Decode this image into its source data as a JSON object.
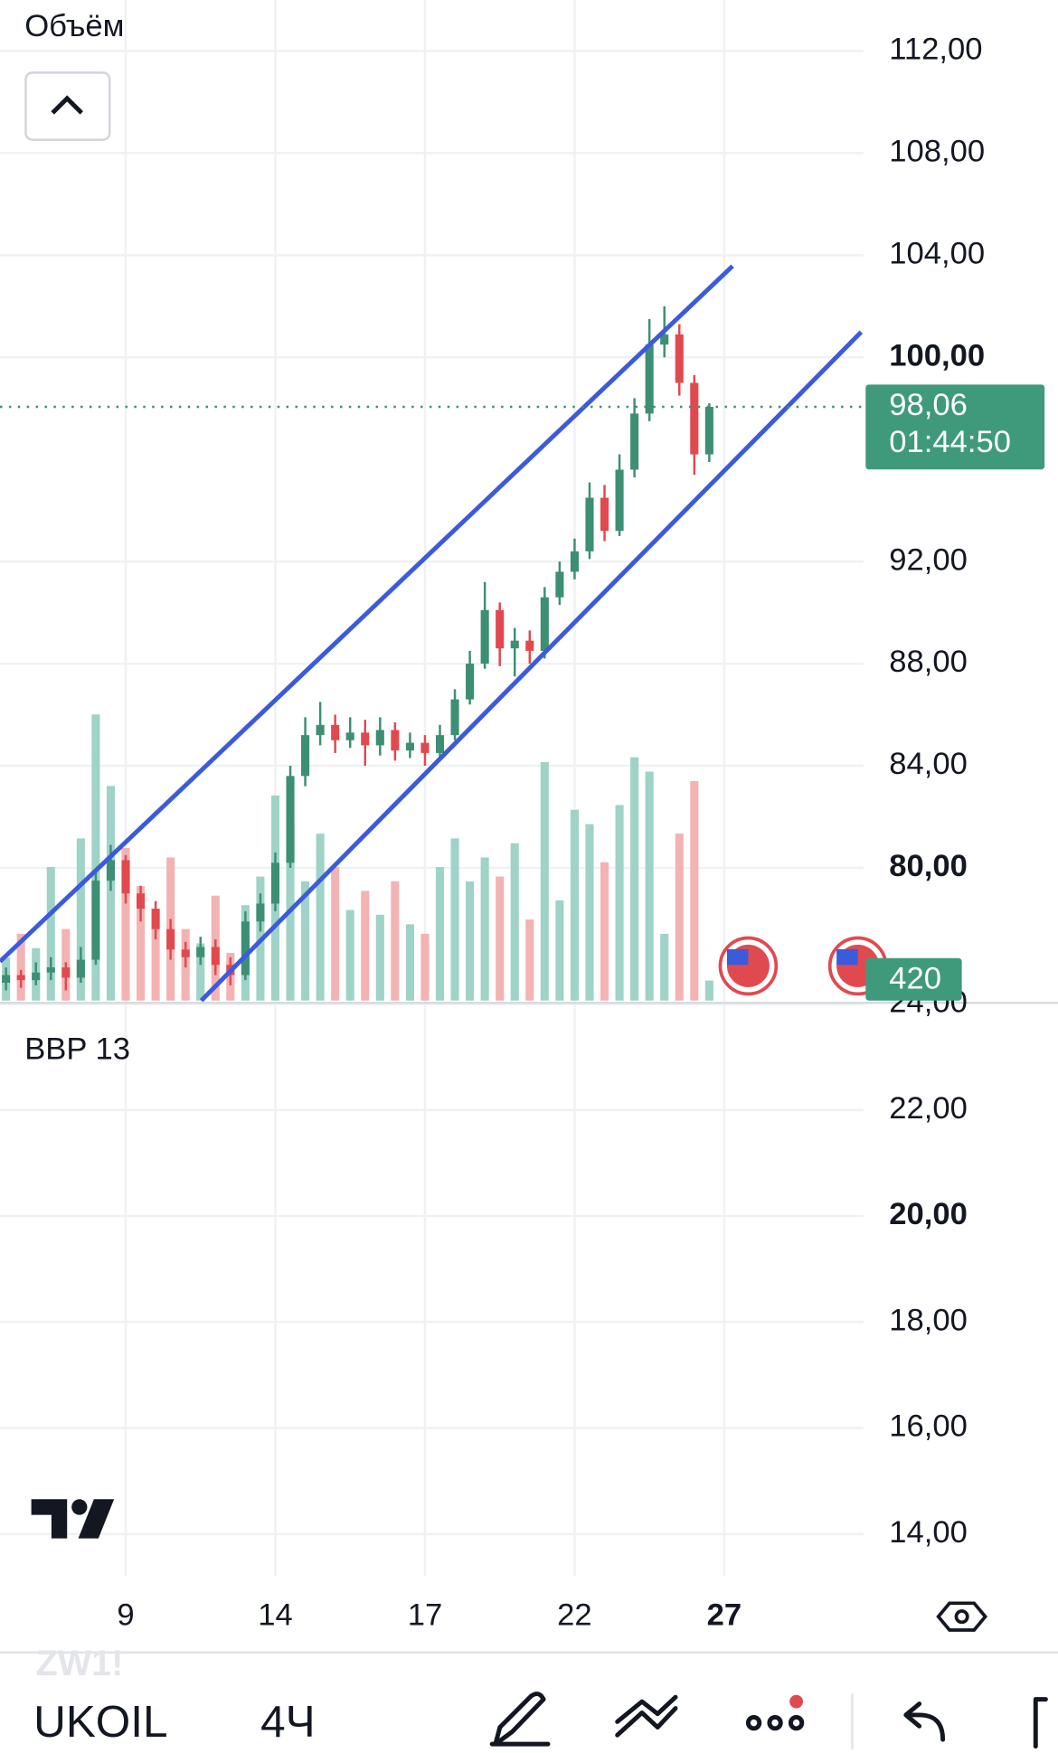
{
  "header": {
    "volume_label": "Объём"
  },
  "chart_data": {
    "type": "candlestick",
    "x": [
      0,
      1,
      2,
      3,
      4,
      5,
      6,
      7,
      8,
      9,
      10,
      11,
      12,
      13,
      14,
      15,
      16,
      17,
      18,
      19,
      20,
      21,
      22,
      23,
      24,
      25,
      26,
      27,
      28,
      29,
      30,
      31,
      32,
      33,
      34,
      35,
      36,
      37,
      38,
      39,
      40,
      41,
      42,
      43,
      44,
      45,
      46,
      47
    ],
    "open": [
      75.5,
      75.8,
      75.6,
      75.9,
      76.1,
      75.7,
      76.4,
      79.5,
      80.3,
      79.0,
      78.4,
      77.6,
      76.8,
      76.5,
      76.9,
      76.2,
      75.8,
      77.9,
      78.6,
      80.2,
      83.6,
      85.2,
      85.6,
      85.0,
      85.3,
      84.8,
      85.4,
      84.6,
      84.9,
      84.5,
      85.2,
      86.6,
      88.0,
      90.1,
      88.6,
      88.9,
      88.5,
      90.6,
      91.6,
      92.4,
      94.5,
      93.2,
      95.6,
      97.8,
      100.5,
      100.9,
      99.0,
      96.2
    ],
    "high": [
      76.1,
      76.0,
      76.3,
      76.5,
      76.3,
      76.9,
      79.9,
      80.9,
      80.5,
      79.3,
      78.7,
      78.0,
      77.1,
      77.3,
      77.2,
      76.5,
      78.3,
      79.0,
      80.6,
      84.0,
      85.9,
      86.5,
      86.0,
      85.9,
      85.8,
      85.9,
      85.7,
      85.3,
      85.2,
      85.6,
      87.0,
      88.5,
      91.2,
      90.4,
      89.4,
      89.3,
      91.0,
      92.0,
      92.9,
      95.1,
      95.0,
      96.2,
      98.4,
      101.5,
      102.0,
      101.3,
      99.3,
      98.2
    ],
    "low": [
      75.2,
      75.3,
      75.4,
      75.6,
      75.2,
      75.5,
      76.2,
      79.1,
      78.6,
      77.9,
      77.2,
      76.4,
      76.1,
      76.2,
      75.8,
      75.4,
      75.6,
      77.5,
      78.3,
      80.0,
      83.2,
      84.8,
      84.5,
      84.7,
      84.0,
      84.4,
      84.2,
      84.3,
      84.0,
      84.2,
      85.0,
      86.4,
      87.8,
      87.9,
      87.5,
      88.0,
      88.2,
      90.3,
      91.3,
      92.1,
      92.8,
      93.0,
      95.3,
      97.5,
      100.0,
      98.5,
      95.4,
      95.9
    ],
    "close": [
      75.8,
      75.6,
      75.9,
      76.1,
      75.7,
      76.4,
      79.5,
      80.3,
      79.0,
      78.4,
      77.6,
      76.8,
      76.5,
      76.9,
      76.2,
      75.8,
      77.9,
      78.6,
      80.2,
      83.6,
      85.2,
      85.6,
      85.0,
      85.3,
      84.8,
      85.4,
      84.6,
      84.9,
      84.5,
      85.2,
      86.6,
      88.0,
      90.1,
      88.6,
      88.9,
      88.5,
      90.6,
      91.6,
      92.4,
      94.5,
      93.2,
      95.6,
      97.8,
      100.5,
      100.9,
      99.0,
      96.2,
      98.06
    ],
    "volume": [
      900,
      1400,
      1100,
      2800,
      1500,
      3400,
      6000,
      4500,
      3200,
      2400,
      1900,
      3000,
      1500,
      1200,
      2200,
      1000,
      2000,
      2600,
      4300,
      3800,
      2500,
      3500,
      2800,
      1900,
      2300,
      1800,
      2500,
      1600,
      1400,
      2800,
      3400,
      2500,
      3000,
      2600,
      3300,
      1700,
      5000,
      2100,
      4000,
      3700,
      2900,
      4100,
      5100,
      4800,
      1400,
      3500,
      4600,
      420
    ],
    "up_color": "#3d8f74",
    "down_color": "#e04a4f",
    "volume_up_color": "#9fd3c7",
    "volume_down_color": "#f3b3b3",
    "xlim": [
      -0.4,
      57.3
    ],
    "xticks": [
      {
        "value": 8,
        "label": "9"
      },
      {
        "value": 18,
        "label": "14"
      },
      {
        "value": 28,
        "label": "17"
      },
      {
        "value": 38,
        "label": "22"
      },
      {
        "value": 48,
        "label": "27"
      }
    ],
    "ylim": [
      74.8,
      114
    ],
    "yticks": [
      {
        "value": 112,
        "label": "112,00"
      },
      {
        "value": 108,
        "label": "108,00"
      },
      {
        "value": 104,
        "label": "104,00"
      },
      {
        "value": 100,
        "label": "100,00"
      },
      {
        "value": 92,
        "label": "92,00"
      },
      {
        "value": 88,
        "label": "88,00"
      },
      {
        "value": 84,
        "label": "84,00"
      },
      {
        "value": 80,
        "label": "80,00"
      }
    ],
    "volume_lim": [
      0,
      12000
    ],
    "last_price": 98.06,
    "last_price_label": "98,06",
    "countdown": "01:44:50",
    "indicator": {
      "title": "BBP 13",
      "ylim": [
        13.2,
        24
      ],
      "yticks": [
        {
          "value": 24,
          "label": "24,00"
        },
        {
          "value": 22,
          "label": "22,00"
        },
        {
          "value": 20,
          "label": "20,00"
        },
        {
          "value": 18,
          "label": "18,00"
        },
        {
          "value": 16,
          "label": "16,00"
        },
        {
          "value": 14,
          "label": "14,00"
        }
      ]
    },
    "grid": true
  },
  "toolbar": {
    "ghost_symbol": "ZW1!",
    "symbol": "UKOIL",
    "interval": "4Ч"
  }
}
